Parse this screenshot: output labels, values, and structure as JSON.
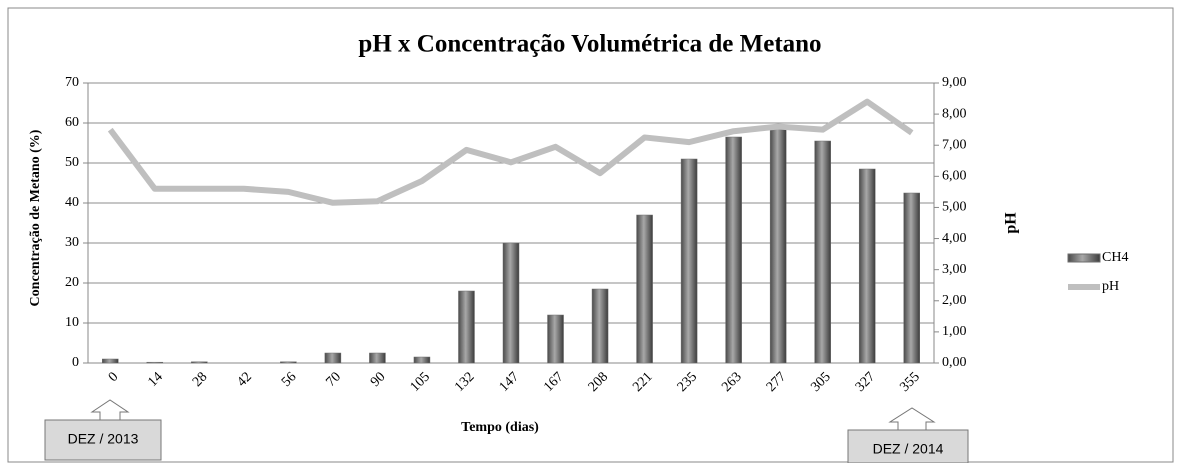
{
  "chart_data": {
    "type": "bar_line",
    "title": "pH x Concentração Volumétrica de Metano",
    "xlabel": "Tempo (dias)",
    "ylabel": "Concentração de Metano (%)",
    "y2label": "pH",
    "categories": [
      "0",
      "14",
      "28",
      "42",
      "56",
      "70",
      "90",
      "105",
      "132",
      "147",
      "167",
      "208",
      "221",
      "235",
      "263",
      "277",
      "305",
      "327",
      "355"
    ],
    "series": [
      {
        "name": "CH4",
        "type": "bar",
        "color": "#6e6e6e",
        "values": [
          1,
          0.2,
          0.3,
          0,
          0.3,
          2.5,
          2.5,
          1.5,
          18,
          30,
          12,
          18.5,
          37,
          51,
          56.5,
          58.5,
          55.5,
          48.5,
          42.5
        ]
      },
      {
        "name": "pH",
        "type": "line",
        "axis": "y2",
        "color": "#bfbfbf",
        "values": [
          7.5,
          5.6,
          5.6,
          5.6,
          5.5,
          5.15,
          5.2,
          5.85,
          6.85,
          6.45,
          6.95,
          6.1,
          7.25,
          7.1,
          7.45,
          7.6,
          7.5,
          8.4,
          7.4
        ]
      }
    ],
    "ylim": [
      0,
      70
    ],
    "yticks": [
      0,
      10,
      20,
      30,
      40,
      50,
      60,
      70
    ],
    "y2lim": [
      0,
      9
    ],
    "y2ticks": [
      {
        "value": 0,
        "label": "0,00"
      },
      {
        "value": 1,
        "label": "1,00"
      },
      {
        "value": 2,
        "label": "2,00"
      },
      {
        "value": 3,
        "label": "3,00"
      },
      {
        "value": 4,
        "label": "4,00"
      },
      {
        "value": 5,
        "label": "5,00"
      },
      {
        "value": 6,
        "label": "6,00"
      },
      {
        "value": 7,
        "label": "7,00"
      },
      {
        "value": 8,
        "label": "8,00"
      },
      {
        "value": 9,
        "label": "9,00"
      }
    ],
    "grid": true,
    "legend": "right",
    "annotations": [
      "DEZ / 2013",
      "DEZ / 2014"
    ]
  }
}
